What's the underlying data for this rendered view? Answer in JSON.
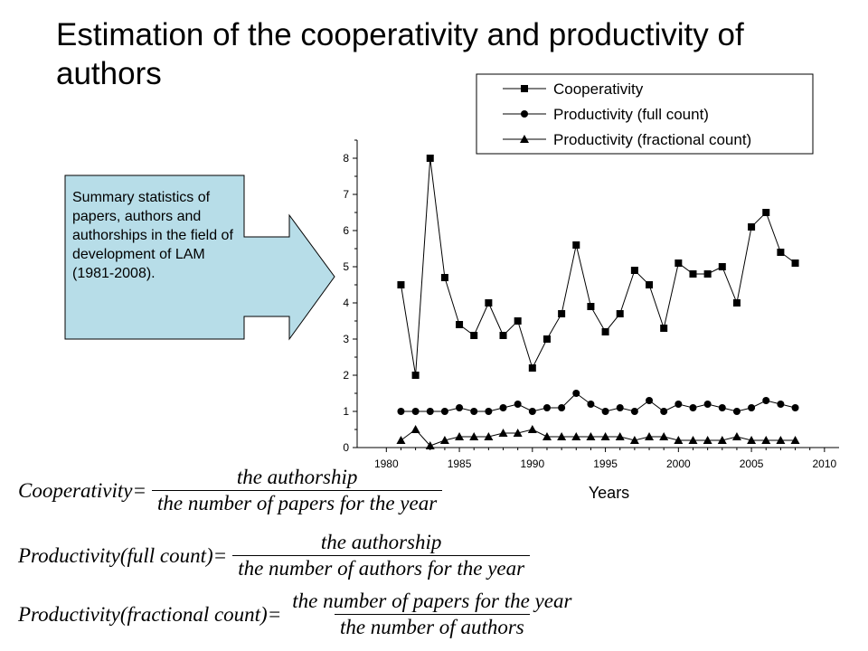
{
  "title": "Estimation of the cooperativity and productivity of authors",
  "callout": {
    "text": "Summary statistics of papers, authors and authorships in the field of development of LAM (1981-2008).",
    "fill": "#b7dde8"
  },
  "chart_data": {
    "type": "line",
    "xlabel": "Years",
    "ylabel": "",
    "xlim": [
      1978,
      2011
    ],
    "ylim": [
      0,
      8.5
    ],
    "xticks": [
      1980,
      1985,
      1990,
      1995,
      2000,
      2005,
      2010
    ],
    "yticks": [
      0,
      1,
      2,
      3,
      4,
      5,
      6,
      7,
      8
    ],
    "legend_position": "top-right",
    "x": [
      1981,
      1982,
      1983,
      1984,
      1985,
      1986,
      1987,
      1988,
      1989,
      1990,
      1991,
      1992,
      1993,
      1994,
      1995,
      1996,
      1997,
      1998,
      1999,
      2000,
      2001,
      2002,
      2003,
      2004,
      2005,
      2006,
      2007,
      2008
    ],
    "series": [
      {
        "name": "Cooperativity",
        "marker": "square",
        "values": [
          4.5,
          2.0,
          8.0,
          4.7,
          3.4,
          3.1,
          4.0,
          3.1,
          3.5,
          2.2,
          3.0,
          3.7,
          5.6,
          3.9,
          3.2,
          3.7,
          4.9,
          4.5,
          3.3,
          5.1,
          4.8,
          4.8,
          5.0,
          4.0,
          6.1,
          6.5,
          5.4,
          5.1
        ]
      },
      {
        "name": "Productivity (full count)",
        "marker": "circle",
        "values": [
          1.0,
          1.0,
          1.0,
          1.0,
          1.1,
          1.0,
          1.0,
          1.1,
          1.2,
          1.0,
          1.1,
          1.1,
          1.5,
          1.2,
          1.0,
          1.1,
          1.0,
          1.3,
          1.0,
          1.2,
          1.1,
          1.2,
          1.1,
          1.0,
          1.1,
          1.3,
          1.2,
          1.1
        ]
      },
      {
        "name": "Productivity (fractional count)",
        "marker": "triangle",
        "values": [
          0.2,
          0.5,
          0.05,
          0.2,
          0.3,
          0.3,
          0.3,
          0.4,
          0.4,
          0.5,
          0.3,
          0.3,
          0.3,
          0.3,
          0.3,
          0.3,
          0.2,
          0.3,
          0.3,
          0.2,
          0.2,
          0.2,
          0.2,
          0.3,
          0.2,
          0.2,
          0.2,
          0.2
        ]
      }
    ]
  },
  "formulas": [
    {
      "lhs": "Cooperativity=",
      "numerator": "the authorship",
      "denominator": "the number of papers for the year"
    },
    {
      "lhs": "Productivity(full count)=",
      "numerator": "the authorship",
      "denominator": "the number of authors for the year"
    },
    {
      "lhs": "Productivity(fractional count)=",
      "numerator": "the number of papers for the year",
      "denominator": "the number of authors"
    }
  ]
}
